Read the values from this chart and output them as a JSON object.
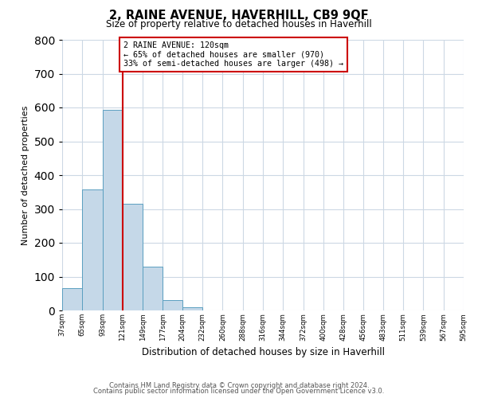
{
  "title": "2, RAINE AVENUE, HAVERHILL, CB9 9QF",
  "subtitle": "Size of property relative to detached houses in Haverhill",
  "xlabel": "Distribution of detached houses by size in Haverhill",
  "ylabel": "Number of detached properties",
  "bar_edges": [
    37,
    65,
    93,
    121,
    149,
    177,
    204,
    232,
    260,
    288,
    316,
    344,
    372,
    400,
    428,
    456,
    483,
    511,
    539,
    567,
    595
  ],
  "bar_heights": [
    65,
    357,
    592,
    315,
    130,
    30,
    10,
    0,
    0,
    0,
    0,
    0,
    0,
    0,
    0,
    0,
    0,
    0,
    0,
    0
  ],
  "bar_color": "#c5d8e8",
  "bar_edge_color": "#5a9fc0",
  "property_line_x": 121,
  "property_line_color": "#cc0000",
  "annotation_text": "2 RAINE AVENUE: 120sqm\n← 65% of detached houses are smaller (970)\n33% of semi-detached houses are larger (498) →",
  "annotation_box_color": "#ffffff",
  "annotation_box_edge_color": "#cc0000",
  "ylim": [
    0,
    800
  ],
  "yticks": [
    0,
    100,
    200,
    300,
    400,
    500,
    600,
    700,
    800
  ],
  "background_color": "#ffffff",
  "grid_color": "#ccd8e4",
  "footer_line1": "Contains HM Land Registry data © Crown copyright and database right 2024.",
  "footer_line2": "Contains public sector information licensed under the Open Government Licence v3.0."
}
